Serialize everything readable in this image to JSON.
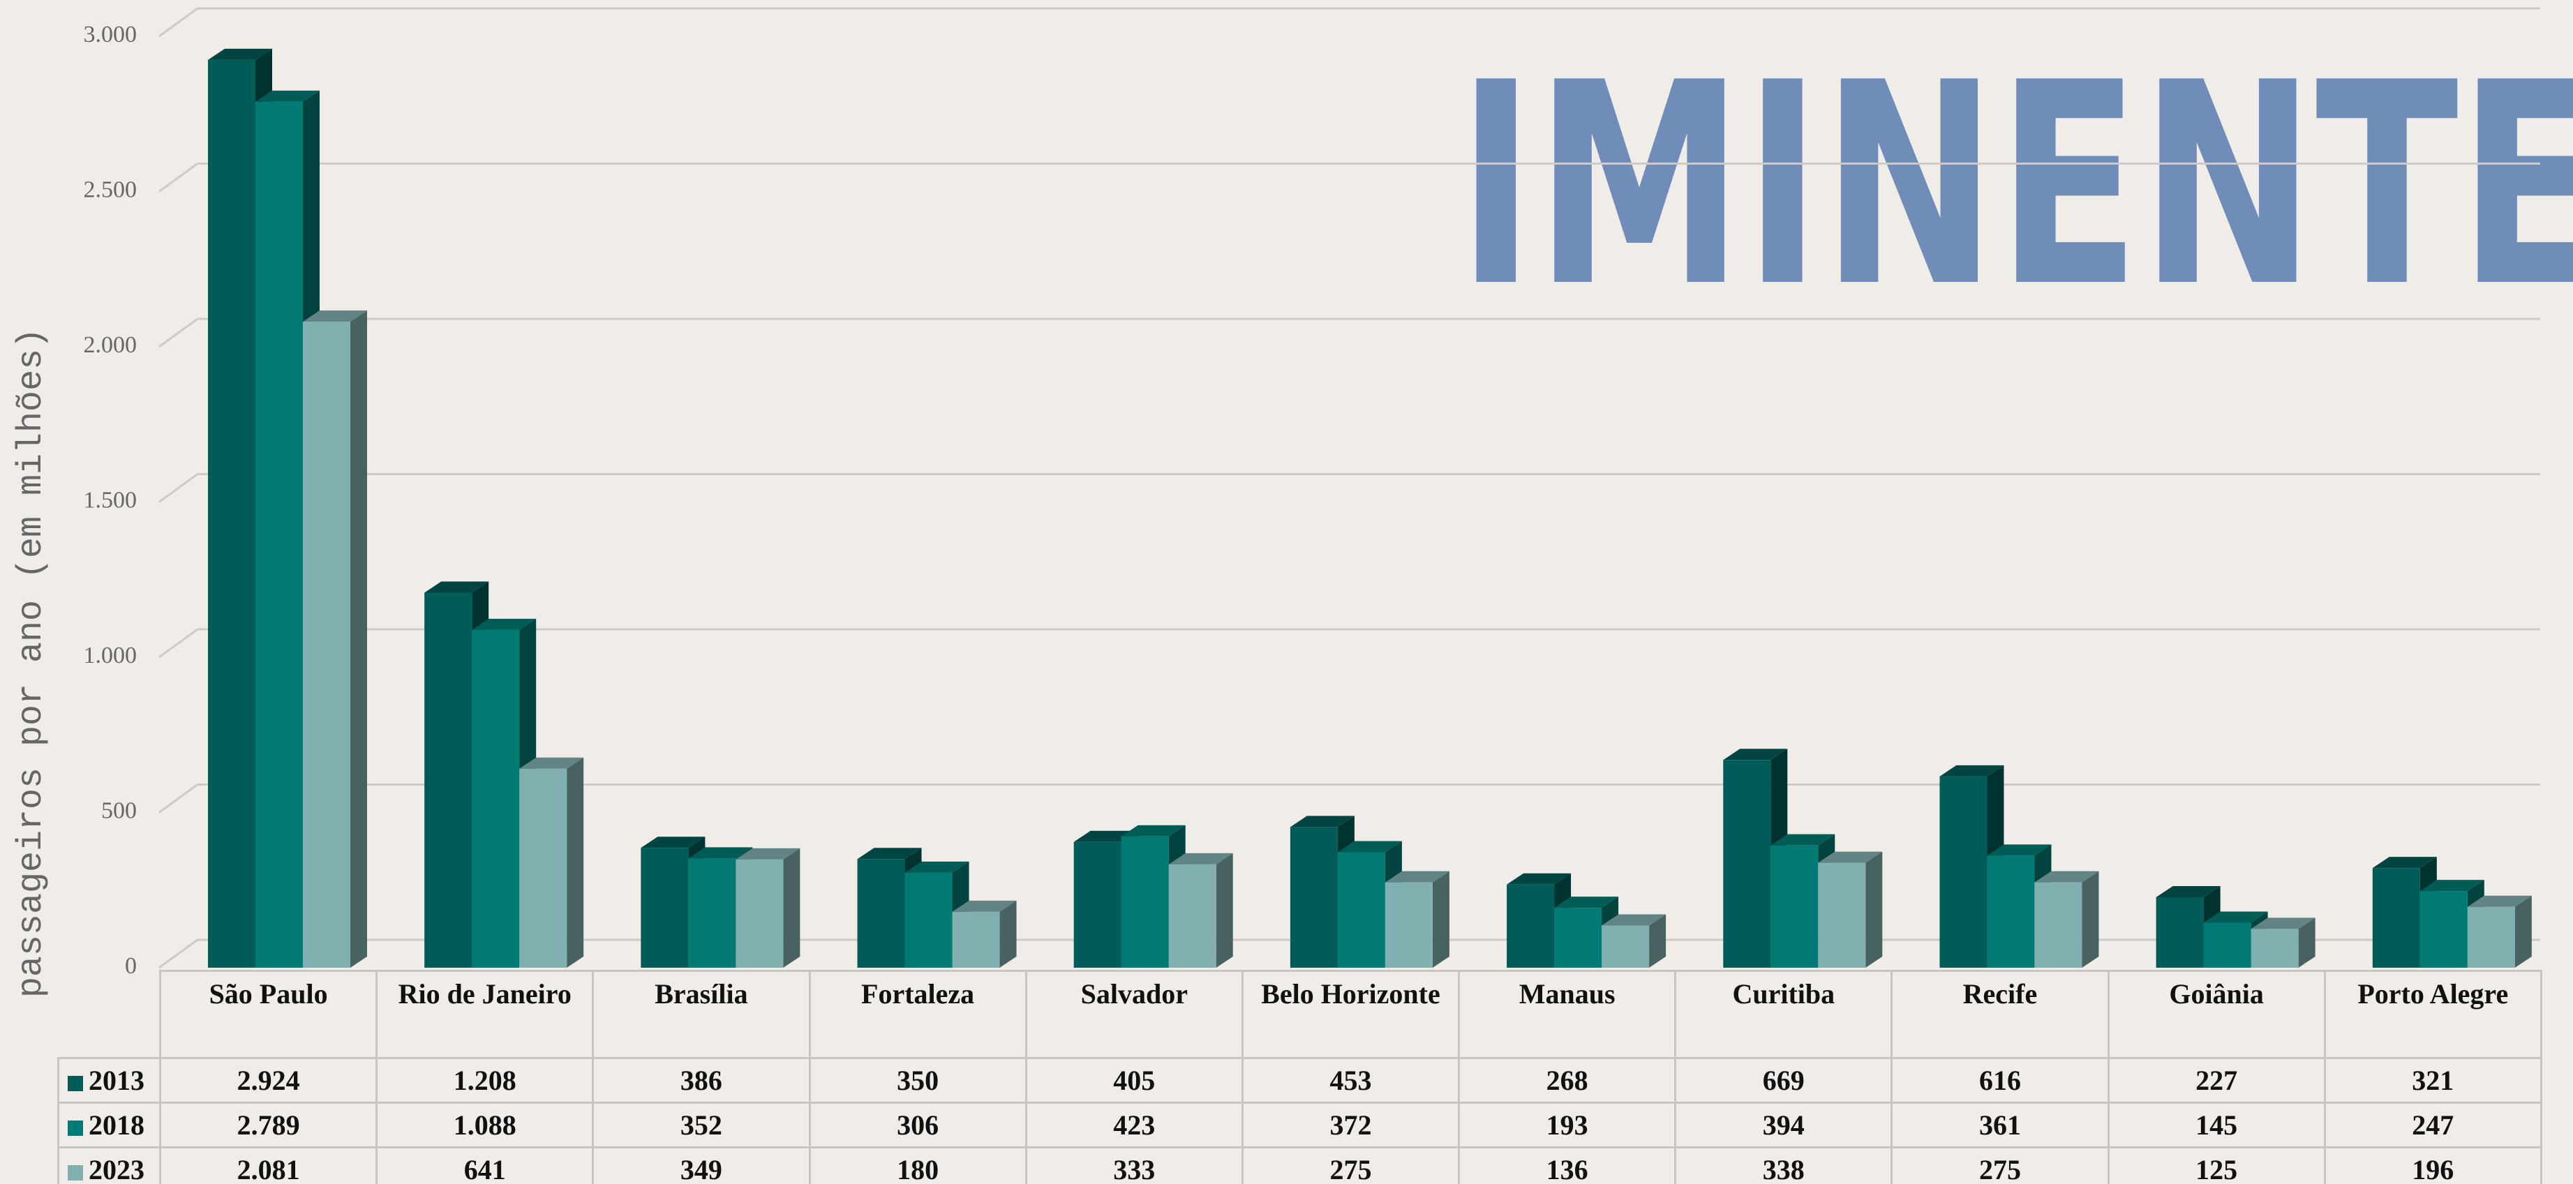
{
  "chart_data": {
    "type": "bar3d",
    "title": "IMINENTE",
    "y_label": "passageiros por ano (em milhões)",
    "categories": [
      "São Paulo",
      "Rio de Janeiro",
      "Brasília",
      "Fortaleza",
      "Salvador",
      "Belo Horizonte",
      "Manaus",
      "Curitiba",
      "Recife",
      "Goiânia",
      "Porto Alegre"
    ],
    "series": [
      {
        "name": "2013",
        "color": "#005c58",
        "values": [
          2924,
          1208,
          386,
          350,
          405,
          453,
          268,
          669,
          616,
          227,
          321
        ],
        "value_labels": [
          "2.924",
          "1.208",
          "386",
          "350",
          "405",
          "453",
          "268",
          "669",
          "616",
          "227",
          "321"
        ]
      },
      {
        "name": "2018",
        "color": "#007a73",
        "values": [
          2789,
          1088,
          352,
          306,
          423,
          372,
          193,
          394,
          361,
          145,
          247
        ],
        "value_labels": [
          "2.789",
          "1.088",
          "352",
          "306",
          "423",
          "372",
          "193",
          "394",
          "361",
          "145",
          "247"
        ]
      },
      {
        "name": "2023",
        "color": "#82b0b0",
        "values": [
          2081,
          641,
          349,
          180,
          333,
          275,
          136,
          338,
          275,
          125,
          196
        ],
        "value_labels": [
          "2.081",
          "641",
          "349",
          "180",
          "333",
          "275",
          "136",
          "338",
          "275",
          "125",
          "196"
        ]
      }
    ],
    "ylim": [
      0,
      3000
    ],
    "yticks": [
      0,
      500,
      {
        "value": 1000,
        "label": "1.000"
      },
      {
        "value": 1500,
        "label": "1.500"
      },
      {
        "value": 2000,
        "label": "2.000"
      },
      {
        "value": 2500,
        "label": "2.500"
      },
      {
        "value": 3000,
        "label": "3.000"
      }
    ],
    "grid": true
  }
}
